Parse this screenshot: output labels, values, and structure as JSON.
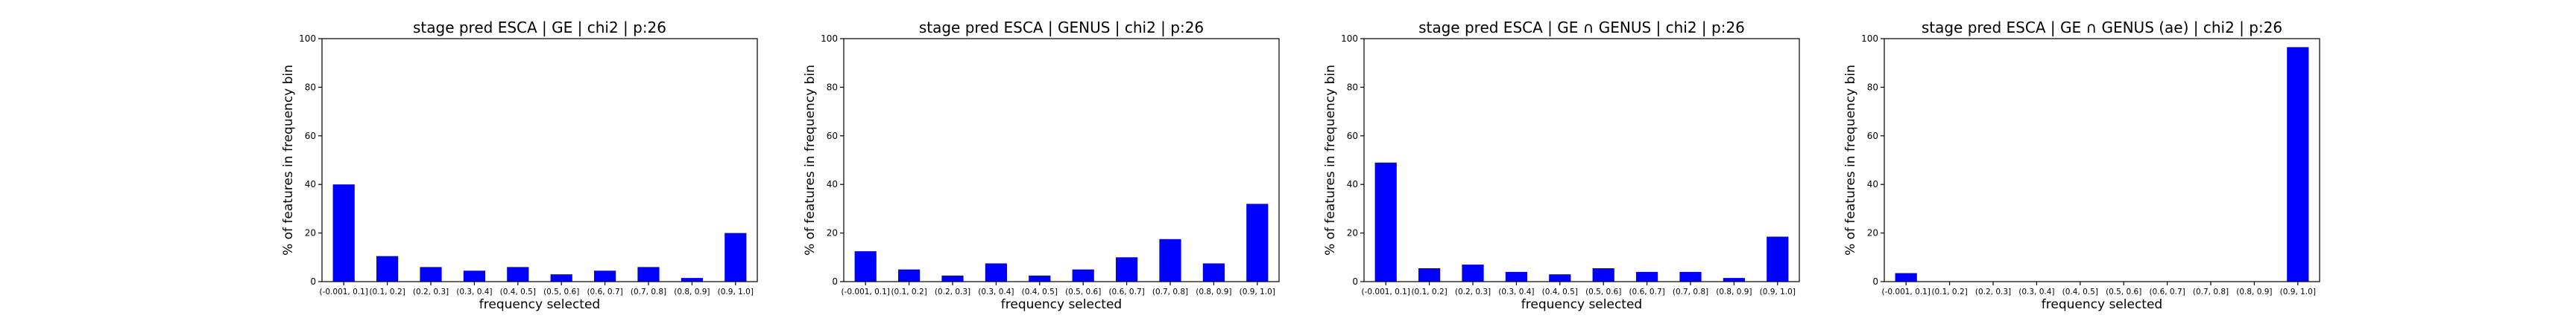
{
  "chart_data": [
    {
      "type": "bar",
      "title": "stage pred ESCA | GE | chi2 | p:26",
      "xlabel": "frequency selected",
      "ylabel": "% of features in frequency bin",
      "categories": [
        "(-0.001, 0.1]",
        "(0.1, 0.2]",
        "(0.2, 0.3]",
        "(0.3, 0.4]",
        "(0.4, 0.5]",
        "(0.5, 0.6]",
        "(0.6, 0.7]",
        "(0.7, 0.8]",
        "(0.8, 0.9]",
        "(0.9, 1.0]"
      ],
      "values": [
        40.0,
        10.5,
        6.0,
        4.5,
        6.0,
        3.0,
        4.5,
        6.0,
        1.5,
        20.0
      ],
      "ylim": [
        0,
        100
      ],
      "yticks": [
        "0",
        "20",
        "40",
        "60",
        "80",
        "100"
      ],
      "bar_color": "#0000ff",
      "grid": false
    },
    {
      "type": "bar",
      "title": "stage pred ESCA | GENUS | chi2 | p:26",
      "xlabel": "frequency selected",
      "ylabel": "% of features in frequency bin",
      "categories": [
        "(-0.001, 0.1]",
        "(0.1, 0.2]",
        "(0.2, 0.3]",
        "(0.3, 0.4]",
        "(0.4, 0.5]",
        "(0.5, 0.6]",
        "(0.6, 0.7]",
        "(0.7, 0.8]",
        "(0.8, 0.9]",
        "(0.9, 1.0]"
      ],
      "values": [
        12.5,
        5.0,
        2.5,
        7.5,
        2.5,
        5.0,
        10.0,
        17.5,
        7.5,
        32.0
      ],
      "ylim": [
        0,
        100
      ],
      "yticks": [
        "0",
        "20",
        "40",
        "60",
        "80",
        "100"
      ],
      "bar_color": "#0000ff",
      "grid": false
    },
    {
      "type": "bar",
      "title": "stage pred ESCA | GE ∩ GENUS | chi2 | p:26",
      "xlabel": "frequency selected",
      "ylabel": "% of features in frequency bin",
      "categories": [
        "(-0.001, 0.1]",
        "(0.1, 0.2]",
        "(0.2, 0.3]",
        "(0.3, 0.4]",
        "(0.4, 0.5]",
        "(0.5, 0.6]",
        "(0.6, 0.7]",
        "(0.7, 0.8]",
        "(0.8, 0.9]",
        "(0.9, 1.0]"
      ],
      "values": [
        49.0,
        5.5,
        7.0,
        4.0,
        3.0,
        5.5,
        4.0,
        4.0,
        1.5,
        18.5
      ],
      "ylim": [
        0,
        100
      ],
      "yticks": [
        "0",
        "20",
        "40",
        "60",
        "80",
        "100"
      ],
      "bar_color": "#0000ff",
      "grid": false
    },
    {
      "type": "bar",
      "title": "stage pred ESCA | GE ∩ GENUS (ae) | chi2 | p:26",
      "xlabel": "frequency selected",
      "ylabel": "% of features in frequency bin",
      "categories": [
        "(-0.001, 0.1]",
        "(0.1, 0.2]",
        "(0.2, 0.3]",
        "(0.3, 0.4]",
        "(0.4, 0.5]",
        "(0.5, 0.6]",
        "(0.6, 0.7]",
        "(0.7, 0.8]",
        "(0.8, 0.9]",
        "(0.9, 1.0]"
      ],
      "values": [
        3.5,
        0,
        0,
        0,
        0,
        0,
        0,
        0,
        0,
        96.5
      ],
      "ylim": [
        0,
        100
      ],
      "yticks": [
        "0",
        "20",
        "40",
        "60",
        "80",
        "100"
      ],
      "bar_color": "#0000ff",
      "grid": false
    }
  ]
}
